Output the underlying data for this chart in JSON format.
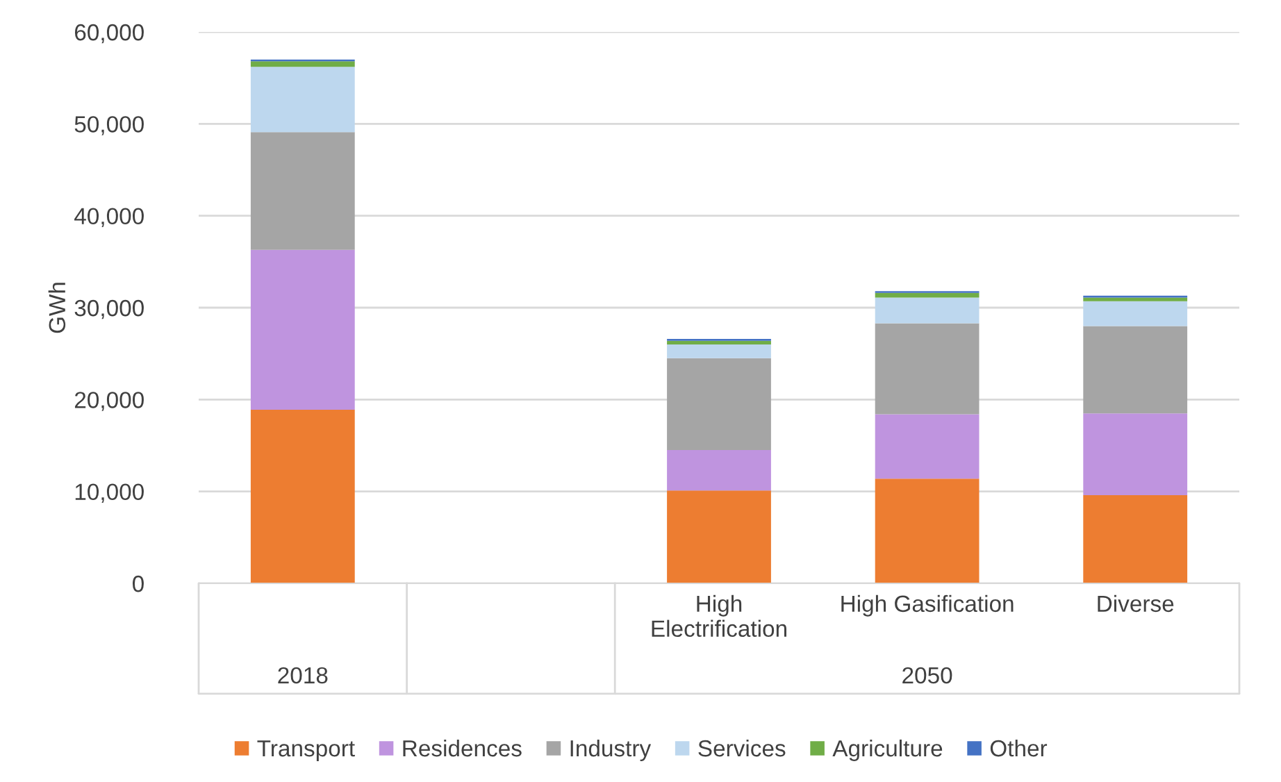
{
  "chart_data": {
    "type": "bar",
    "stacked": true,
    "ylabel": "GWh",
    "categories": [
      null,
      null,
      "High\nElectrification",
      "High Gasification",
      "Diverse"
    ],
    "series": [
      {
        "name": "Transport",
        "color": "#ed7d31",
        "values": [
          18900,
          null,
          10100,
          11400,
          9600
        ]
      },
      {
        "name": "Residences",
        "color": "#bf94df",
        "values": [
          17400,
          null,
          4400,
          7000,
          8900
        ]
      },
      {
        "name": "Industry",
        "color": "#a5a5a5",
        "values": [
          12800,
          null,
          10000,
          9900,
          9500
        ]
      },
      {
        "name": "Services",
        "color": "#bdd7ee",
        "values": [
          7100,
          null,
          1500,
          2800,
          2700
        ]
      },
      {
        "name": "Agriculture",
        "color": "#70ad47",
        "values": [
          600,
          null,
          400,
          500,
          400
        ]
      },
      {
        "name": "Other",
        "color": "#4472c4",
        "values": [
          200,
          null,
          200,
          200,
          200
        ]
      }
    ],
    "annotations": [
      "2018",
      "2050"
    ],
    "ylim": [
      0,
      60000
    ],
    "yticks": [
      {
        "value": 0,
        "label": "0"
      },
      {
        "value": 10000,
        "label": "10,000"
      },
      {
        "value": 20000,
        "label": "20,000"
      },
      {
        "value": 30000,
        "label": "30,000"
      },
      {
        "value": 40000,
        "label": "40,000"
      },
      {
        "value": 50000,
        "label": "50,000"
      },
      {
        "value": 60000,
        "label": "60,000"
      }
    ],
    "grid": "y",
    "legend": "bottom"
  }
}
